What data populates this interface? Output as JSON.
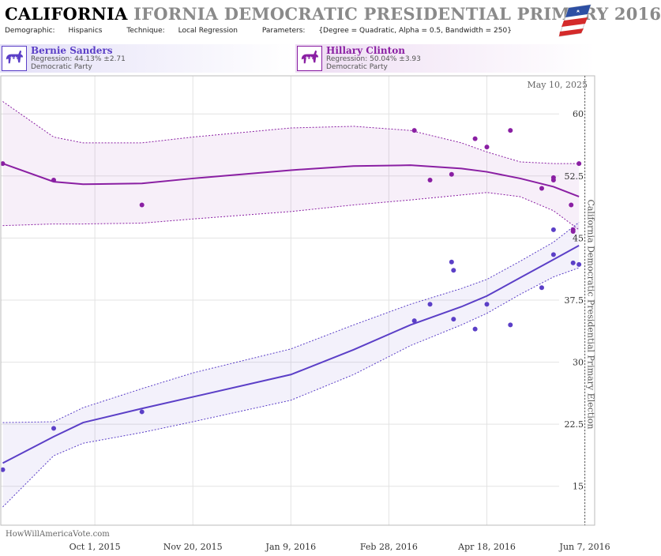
{
  "header": {
    "title_main": "CALIFORNIA",
    "title_rest": " IFORNIA DEMOCRATIC PRESIDENTIAL PRIMARY 2016",
    "demographic_label": "Demographic:",
    "demographic": "Hispanics",
    "technique_label": "Technique:",
    "technique": "Local Regression",
    "parameters_label": "Parameters:",
    "parameters": "{Degree = Quadratic, Alpha = 0.5, Bandwidth = 250}"
  },
  "candidates": [
    {
      "name": "Bernie Sanders",
      "regression": "Regression: 44.13% ±2.71",
      "party": "Democratic Party",
      "icon": "donkey-icon",
      "color": "#5b3fc7"
    },
    {
      "name": "Hillary Clinton",
      "regression": "Regression: 50.04% ±3.93",
      "party": "Democratic Party",
      "icon": "donkey-icon",
      "color": "#8a1fa3"
    }
  ],
  "chart_data": {
    "type": "scatter",
    "date_label": "May 10, 2025",
    "election_label": "California Democratic Presidential Primary Election",
    "election_date": "2016-06-07",
    "watermark": "HowWillAmericaVote.com",
    "x_range": [
      "2015-08-14",
      "2016-06-12"
    ],
    "y_range": [
      10.3,
      64.6
    ],
    "x_ticks": [
      {
        "date": "2015-10-01",
        "label": "Oct 1, 2015"
      },
      {
        "date": "2015-11-20",
        "label": "Nov 20, 2015"
      },
      {
        "date": "2016-01-09",
        "label": "Jan 9, 2016"
      },
      {
        "date": "2016-02-28",
        "label": "Feb 28, 2016"
      },
      {
        "date": "2016-04-18",
        "label": "Apr 18, 2016"
      },
      {
        "date": "2016-06-07",
        "label": "Jun 7, 2016"
      }
    ],
    "y_ticks": [
      15,
      22.5,
      30,
      37.5,
      45,
      52.5,
      60
    ],
    "y_tick_labels": [
      "15",
      "22.5",
      "30",
      "37.5",
      "45",
      "52.5",
      "60"
    ],
    "grid": true,
    "series": [
      {
        "name": "Hillary Clinton",
        "color": "#8a1fa3",
        "points": [
          [
            "2015-08-15",
            54.0
          ],
          [
            "2015-09-10",
            52.0
          ],
          [
            "2015-10-25",
            49.0
          ],
          [
            "2016-03-12",
            58.0
          ],
          [
            "2016-03-20",
            52.0
          ],
          [
            "2016-03-31",
            52.7
          ],
          [
            "2016-04-12",
            57.0
          ],
          [
            "2016-04-18",
            56.0
          ],
          [
            "2016-04-30",
            58.0
          ],
          [
            "2016-05-16",
            51.0
          ],
          [
            "2016-05-22",
            52.0
          ],
          [
            "2016-05-22",
            52.3
          ],
          [
            "2016-05-31",
            49.0
          ],
          [
            "2016-06-01",
            46.0
          ],
          [
            "2016-06-01",
            45.8
          ],
          [
            "2016-06-04",
            54.0
          ]
        ],
        "fit": [
          [
            "2015-08-15",
            54.0
          ],
          [
            "2015-09-10",
            51.8
          ],
          [
            "2015-09-25",
            51.5
          ],
          [
            "2015-10-25",
            51.6
          ],
          [
            "2015-11-20",
            52.2
          ],
          [
            "2016-01-09",
            53.2
          ],
          [
            "2016-02-10",
            53.7
          ],
          [
            "2016-03-10",
            53.8
          ],
          [
            "2016-04-05",
            53.4
          ],
          [
            "2016-04-18",
            53.0
          ],
          [
            "2016-05-05",
            52.2
          ],
          [
            "2016-05-22",
            51.2
          ],
          [
            "2016-06-04",
            50.0
          ]
        ],
        "upper": [
          [
            "2015-08-15",
            61.5
          ],
          [
            "2015-09-10",
            57.2
          ],
          [
            "2015-09-25",
            56.5
          ],
          [
            "2015-10-25",
            56.5
          ],
          [
            "2015-11-20",
            57.2
          ],
          [
            "2016-01-09",
            58.3
          ],
          [
            "2016-02-10",
            58.5
          ],
          [
            "2016-03-10",
            58.0
          ],
          [
            "2016-04-05",
            56.5
          ],
          [
            "2016-04-18",
            55.4
          ],
          [
            "2016-05-05",
            54.2
          ],
          [
            "2016-05-22",
            54.0
          ],
          [
            "2016-06-04",
            54.0
          ]
        ],
        "lower": [
          [
            "2015-08-15",
            46.5
          ],
          [
            "2015-09-10",
            46.7
          ],
          [
            "2015-09-25",
            46.7
          ],
          [
            "2015-10-25",
            46.8
          ],
          [
            "2015-11-20",
            47.3
          ],
          [
            "2016-01-09",
            48.2
          ],
          [
            "2016-02-10",
            49.0
          ],
          [
            "2016-03-10",
            49.6
          ],
          [
            "2016-04-05",
            50.2
          ],
          [
            "2016-04-18",
            50.5
          ],
          [
            "2016-05-05",
            50.0
          ],
          [
            "2016-05-22",
            48.3
          ],
          [
            "2016-06-04",
            46.0
          ]
        ]
      },
      {
        "name": "Bernie Sanders",
        "color": "#5b3fc7",
        "points": [
          [
            "2015-08-15",
            17.0
          ],
          [
            "2015-09-10",
            22.0
          ],
          [
            "2015-10-25",
            24.0
          ],
          [
            "2016-03-12",
            35.0
          ],
          [
            "2016-03-20",
            37.0
          ],
          [
            "2016-03-31",
            42.1
          ],
          [
            "2016-04-01",
            41.1
          ],
          [
            "2016-04-01",
            35.2
          ],
          [
            "2016-04-12",
            34.0
          ],
          [
            "2016-04-18",
            37.0
          ],
          [
            "2016-04-30",
            34.5
          ],
          [
            "2016-05-16",
            39.0
          ],
          [
            "2016-05-22",
            46.0
          ],
          [
            "2016-05-22",
            43.0
          ],
          [
            "2016-06-01",
            42.0
          ],
          [
            "2016-06-04",
            41.8
          ]
        ],
        "fit": [
          [
            "2015-08-15",
            17.8
          ],
          [
            "2015-09-10",
            21.0
          ],
          [
            "2015-09-25",
            22.7
          ],
          [
            "2015-10-25",
            24.4
          ],
          [
            "2015-11-20",
            25.8
          ],
          [
            "2016-01-09",
            28.5
          ],
          [
            "2016-02-10",
            31.5
          ],
          [
            "2016-03-10",
            34.5
          ],
          [
            "2016-04-05",
            36.7
          ],
          [
            "2016-04-18",
            38.0
          ],
          [
            "2016-05-05",
            40.2
          ],
          [
            "2016-05-22",
            42.4
          ],
          [
            "2016-06-04",
            44.1
          ]
        ],
        "upper": [
          [
            "2015-08-15",
            22.7
          ],
          [
            "2015-09-10",
            22.8
          ],
          [
            "2015-09-25",
            24.5
          ],
          [
            "2015-10-25",
            26.8
          ],
          [
            "2015-11-20",
            28.7
          ],
          [
            "2016-01-09",
            31.6
          ],
          [
            "2016-02-10",
            34.5
          ],
          [
            "2016-03-10",
            37.0
          ],
          [
            "2016-04-05",
            38.9
          ],
          [
            "2016-04-18",
            40.0
          ],
          [
            "2016-05-05",
            42.2
          ],
          [
            "2016-05-22",
            44.5
          ],
          [
            "2016-06-04",
            46.9
          ]
        ],
        "lower": [
          [
            "2015-08-15",
            12.5
          ],
          [
            "2015-09-10",
            18.7
          ],
          [
            "2015-09-25",
            20.2
          ],
          [
            "2015-10-25",
            21.5
          ],
          [
            "2015-11-20",
            22.8
          ],
          [
            "2016-01-09",
            25.4
          ],
          [
            "2016-02-10",
            28.5
          ],
          [
            "2016-03-10",
            32.0
          ],
          [
            "2016-04-05",
            34.5
          ],
          [
            "2016-04-18",
            35.9
          ],
          [
            "2016-05-05",
            38.2
          ],
          [
            "2016-05-22",
            40.3
          ],
          [
            "2016-06-04",
            41.4
          ]
        ]
      }
    ]
  }
}
